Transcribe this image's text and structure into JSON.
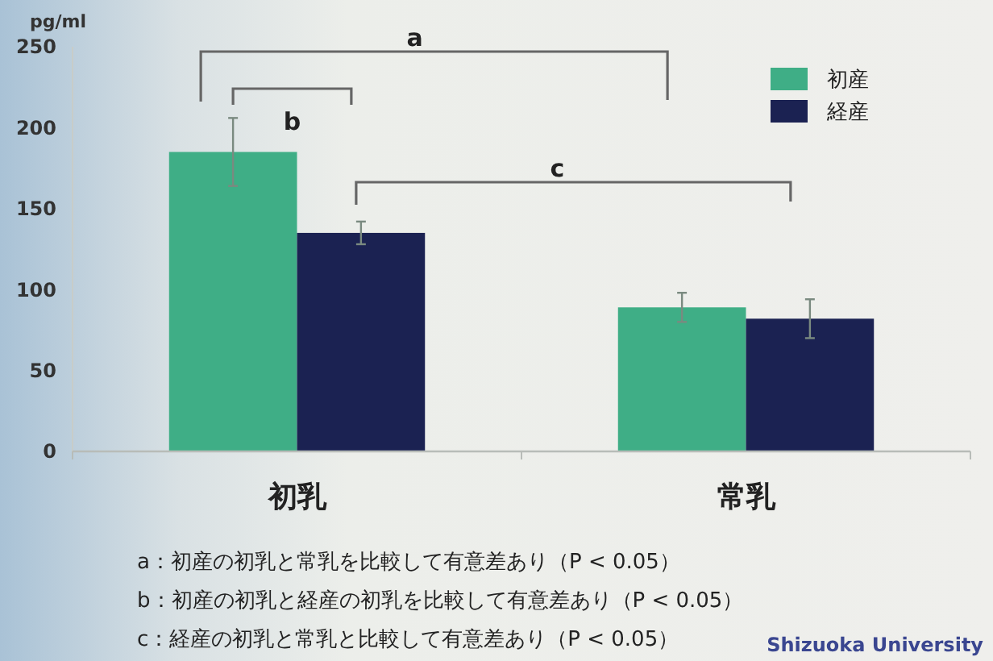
{
  "chart_data": {
    "type": "bar",
    "ylabel": "pg/ml",
    "categories": [
      "初乳",
      "常乳"
    ],
    "series": [
      {
        "name": "初産",
        "color": "#3fae86",
        "values": [
          185,
          89
        ],
        "errors": [
          21,
          9
        ]
      },
      {
        "name": "経産",
        "color": "#1b2252",
        "values": [
          135,
          82
        ],
        "errors": [
          7,
          12
        ]
      }
    ],
    "ylim": [
      0,
      250
    ],
    "yticks": [
      0,
      50,
      100,
      150,
      200,
      250
    ],
    "grid": false,
    "legend": "top right",
    "annotations": [
      "a",
      "b",
      "c",
      "a：初産の初乳と常乳を比較して有意差あり（P < 0.05）",
      "b：初産の初乳と経産の初乳を比較して有意差あり（P < 0.05）",
      "c：経産の初乳と常乳と比較して有意差あり（P < 0.05）",
      "Shizuoka University"
    ]
  }
}
